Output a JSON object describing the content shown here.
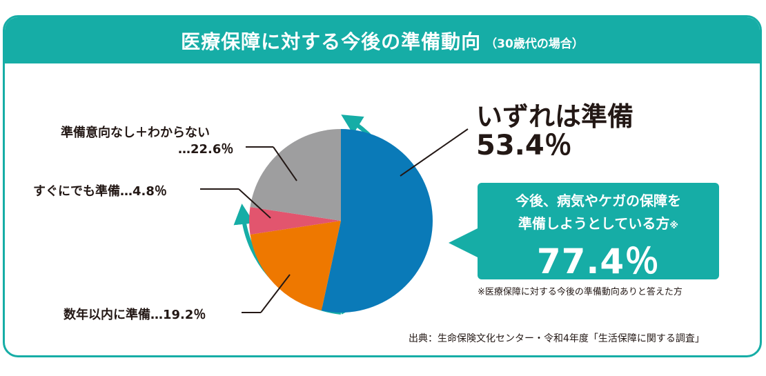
{
  "header": {
    "title": "医療保障に対する今後の準備動向",
    "subtitle": "（30歳代の場合）"
  },
  "colors": {
    "accent": "#16ada6",
    "soon": "#e2556e",
    "within_years": "#ee7800",
    "someday": "#0a7ab8",
    "no_intention": "#9e9e9f"
  },
  "chart_data": {
    "type": "pie",
    "slices": [
      {
        "label": "いずれは準備",
        "value": 53.4,
        "color": "#0a7ab8"
      },
      {
        "label": "数年以内に準備",
        "value": 19.2,
        "color": "#ee7800"
      },
      {
        "label": "すぐにでも準備",
        "value": 4.8,
        "color": "#e2556e"
      },
      {
        "label": "準備意向なし＋わからない",
        "value": 22.6,
        "color": "#9e9e9f"
      }
    ]
  },
  "labels": {
    "no_intention_line1": "準備意向なし＋わからない",
    "no_intention_line2": "…22.6％",
    "soon": "すぐにでも準備…4.8％",
    "within_years": "数年以内に準備…19.2％",
    "someday_title": "いずれは準備",
    "someday_value": "53.4％"
  },
  "callout": {
    "line1": "今後、病気やケガの保障を",
    "line2": "準備しようとしている方",
    "mark": "※",
    "value": "77.4％"
  },
  "footnote": "※医療保障に対する今後の準備動向ありと答えた方",
  "source": "出典：生命保険文化センター・令和4年度「生活保障に関する調査」"
}
